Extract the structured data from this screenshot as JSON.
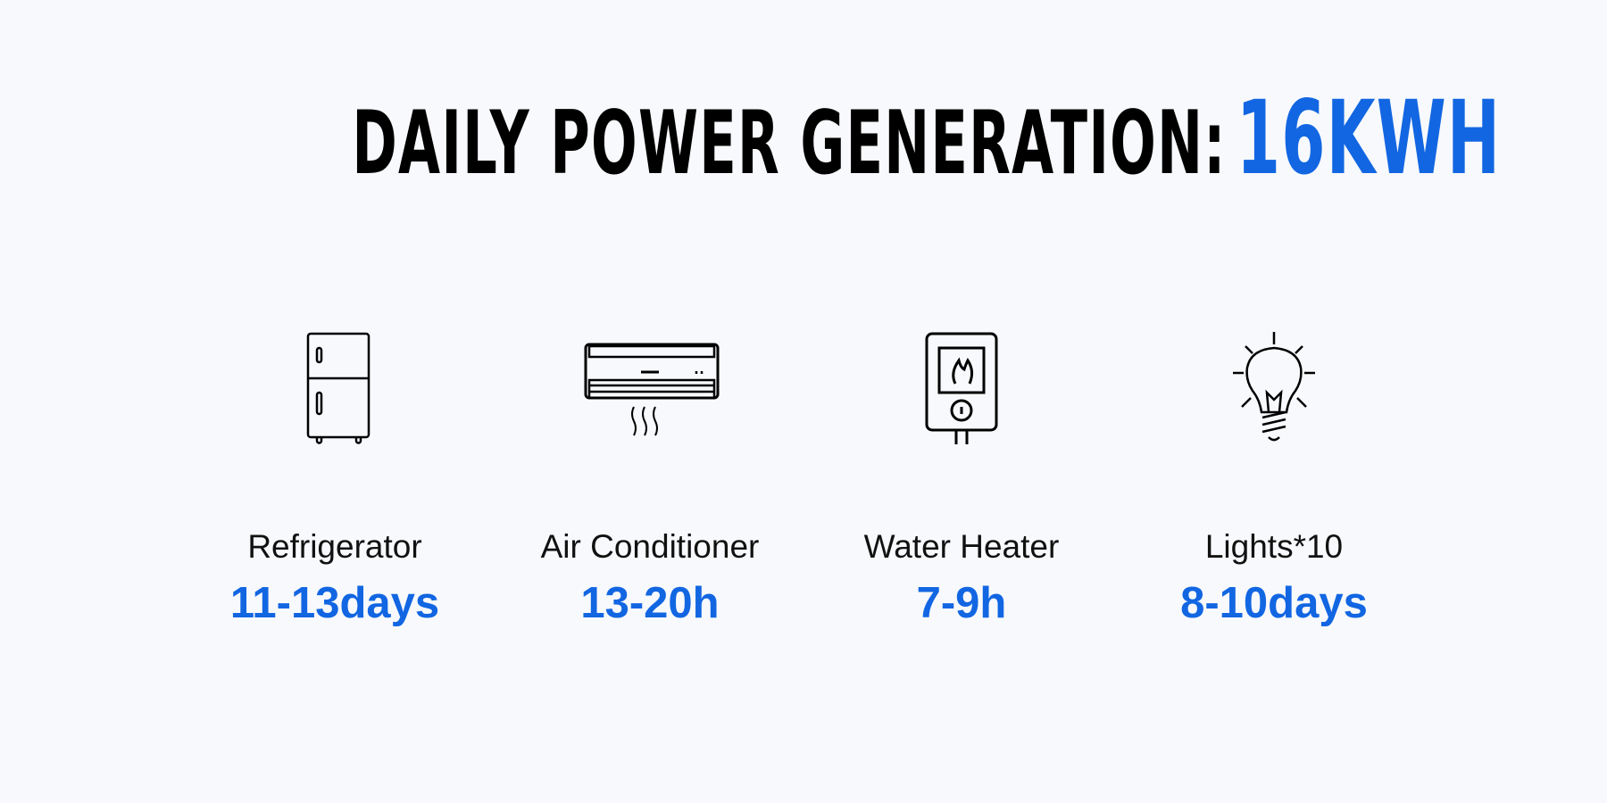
{
  "title": {
    "prefix": "DAILY POWER GENERATION:",
    "highlight": "16KWH"
  },
  "colors": {
    "accent": "#1266e2",
    "text": "#000000",
    "background": "#f7f9fc"
  },
  "appliances": [
    {
      "icon": "refrigerator-icon",
      "label": "Refrigerator",
      "value": "11-13days"
    },
    {
      "icon": "air-conditioner-icon",
      "label": "Air Conditioner",
      "value": "13-20h"
    },
    {
      "icon": "water-heater-icon",
      "label": "Water Heater",
      "value": "7-9h"
    },
    {
      "icon": "light-bulb-icon",
      "label": "Lights*10",
      "value": "8-10days"
    }
  ]
}
